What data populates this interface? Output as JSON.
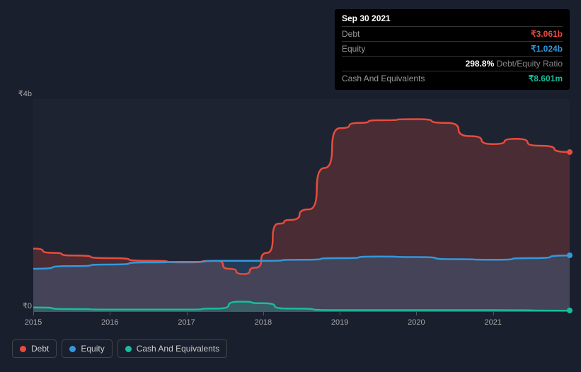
{
  "tooltip": {
    "date": "Sep 30 2021",
    "rows": [
      {
        "label": "Debt",
        "value": "₹3.061b",
        "cls": "val-debt"
      },
      {
        "label": "Equity",
        "value": "₹1.024b",
        "cls": "val-equity"
      },
      {
        "label": "",
        "value": "298.8%",
        "suffix": " Debt/Equity Ratio",
        "cls": "val-white"
      },
      {
        "label": "Cash And Equivalents",
        "value": "₹8.601m",
        "cls": "val-cash"
      }
    ]
  },
  "chart": {
    "type": "area",
    "background_color": "#1a1f2e",
    "plot_bg": "rgba(255,255,255,0.02)",
    "grid_color": "#555",
    "text_color": "#aaa",
    "ylim": [
      0,
      4
    ],
    "y_ticks": [
      {
        "v": 0,
        "label": "₹0"
      },
      {
        "v": 4,
        "label": "₹4b"
      }
    ],
    "xlim": [
      2015,
      2022
    ],
    "x_ticks": [
      {
        "v": 2015,
        "label": "2015"
      },
      {
        "v": 2016,
        "label": "2016"
      },
      {
        "v": 2017,
        "label": "2017"
      },
      {
        "v": 2018,
        "label": "2018"
      },
      {
        "v": 2019,
        "label": "2019"
      },
      {
        "v": 2020,
        "label": "2020"
      },
      {
        "v": 2021,
        "label": "2021"
      }
    ],
    "line_width": 2.5,
    "fill_opacity": 0.22,
    "series": [
      {
        "name": "Debt",
        "color": "#e74c3c",
        "points": [
          [
            2015.0,
            1.18
          ],
          [
            2015.25,
            1.1
          ],
          [
            2015.5,
            1.05
          ],
          [
            2016.0,
            1.0
          ],
          [
            2016.5,
            0.95
          ],
          [
            2017.0,
            0.92
          ],
          [
            2017.4,
            0.95
          ],
          [
            2017.55,
            0.8
          ],
          [
            2017.75,
            0.7
          ],
          [
            2017.9,
            0.82
          ],
          [
            2018.05,
            1.1
          ],
          [
            2018.2,
            1.65
          ],
          [
            2018.35,
            1.72
          ],
          [
            2018.6,
            1.92
          ],
          [
            2018.8,
            2.7
          ],
          [
            2019.0,
            3.45
          ],
          [
            2019.25,
            3.55
          ],
          [
            2019.5,
            3.6
          ],
          [
            2020.0,
            3.62
          ],
          [
            2020.4,
            3.55
          ],
          [
            2020.7,
            3.3
          ],
          [
            2021.0,
            3.15
          ],
          [
            2021.3,
            3.25
          ],
          [
            2021.6,
            3.12
          ],
          [
            2022.0,
            3.0
          ]
        ]
      },
      {
        "name": "Equity",
        "color": "#3498db",
        "points": [
          [
            2015.0,
            0.8
          ],
          [
            2015.5,
            0.85
          ],
          [
            2016.0,
            0.88
          ],
          [
            2016.5,
            0.92
          ],
          [
            2017.0,
            0.93
          ],
          [
            2017.5,
            0.95
          ],
          [
            2018.0,
            0.95
          ],
          [
            2018.5,
            0.97
          ],
          [
            2019.0,
            1.0
          ],
          [
            2019.5,
            1.03
          ],
          [
            2020.0,
            1.02
          ],
          [
            2020.5,
            0.98
          ],
          [
            2021.0,
            0.97
          ],
          [
            2021.5,
            1.0
          ],
          [
            2022.0,
            1.05
          ]
        ]
      },
      {
        "name": "Cash And Equivalents",
        "color": "#1abc9c",
        "points": [
          [
            2015.0,
            0.07
          ],
          [
            2015.5,
            0.04
          ],
          [
            2016.0,
            0.03
          ],
          [
            2016.5,
            0.03
          ],
          [
            2017.0,
            0.03
          ],
          [
            2017.4,
            0.05
          ],
          [
            2017.7,
            0.18
          ],
          [
            2018.0,
            0.15
          ],
          [
            2018.3,
            0.05
          ],
          [
            2019.0,
            0.02
          ],
          [
            2020.0,
            0.02
          ],
          [
            2021.0,
            0.02
          ],
          [
            2022.0,
            0.01
          ]
        ]
      }
    ],
    "end_markers": [
      {
        "series": 0,
        "x": 2022.0,
        "y": 3.0
      },
      {
        "series": 1,
        "x": 2022.0,
        "y": 1.05
      },
      {
        "series": 2,
        "x": 2022.0,
        "y": 0.01
      }
    ]
  },
  "legend": {
    "items": [
      {
        "label": "Debt",
        "dot_cls": "dot-debt"
      },
      {
        "label": "Equity",
        "dot_cls": "dot-equity"
      },
      {
        "label": "Cash And Equivalents",
        "dot_cls": "dot-cash"
      }
    ]
  }
}
